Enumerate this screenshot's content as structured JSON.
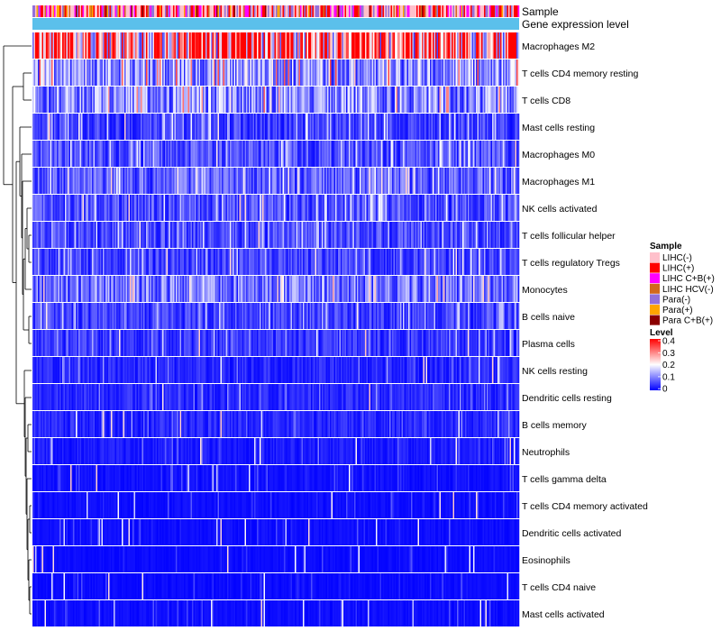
{
  "chart_data": {
    "type": "heatmap",
    "title": "",
    "annotation_tracks": [
      {
        "name": "Sample"
      },
      {
        "name": "Gene expression level"
      }
    ],
    "rows": [
      "Macrophages M2",
      "T cells CD4 memory resting",
      "T cells CD8",
      "Mast cells resting",
      "Macrophages M0",
      "Macrophages M1",
      "NK cells activated",
      "T cells follicular helper",
      "T cells regulatory  Tregs",
      "Monocytes",
      "B cells naive",
      "Plasma cells",
      "NK cells resting",
      "Dendritic cells resting",
      "B cells memory",
      "Neutrophils",
      "T cells gamma delta",
      "T cells CD4 memory activated",
      "Dendritic cells activated",
      "Eosinophils",
      "T cells CD4 naive",
      "Mast cells activated"
    ],
    "row_mean_levels": [
      0.3,
      0.12,
      0.11,
      0.05,
      0.06,
      0.07,
      0.06,
      0.055,
      0.05,
      0.09,
      0.05,
      0.04,
      0.03,
      0.03,
      0.03,
      0.02,
      0.012,
      0.01,
      0.01,
      0.008,
      0.008,
      0.01
    ],
    "n_samples": 360,
    "legend_sample": {
      "title": "Sample",
      "items": [
        {
          "label": "LIHC(-)",
          "color": "#ffc0cb"
        },
        {
          "label": "LIHC(+)",
          "color": "#ff0000"
        },
        {
          "label": "LIHC C+B(+)",
          "color": "#ff00ff"
        },
        {
          "label": "LIHC HCV(-)",
          "color": "#d2691e"
        },
        {
          "label": "Para(-)",
          "color": "#9370db"
        },
        {
          "label": "Para(+)",
          "color": "#ffa500"
        },
        {
          "label": "Para C+B(+)",
          "color": "#8b0000"
        }
      ]
    },
    "legend_level": {
      "title": "Level",
      "range": [
        0,
        0.4
      ],
      "ticks": [
        "0.4",
        "0.3",
        "0.2",
        "0.1",
        "0"
      ],
      "colors": [
        "#0000ff",
        "#ffffff",
        "#ff0000"
      ]
    },
    "expression_bar_color": "#5bc0eb"
  }
}
